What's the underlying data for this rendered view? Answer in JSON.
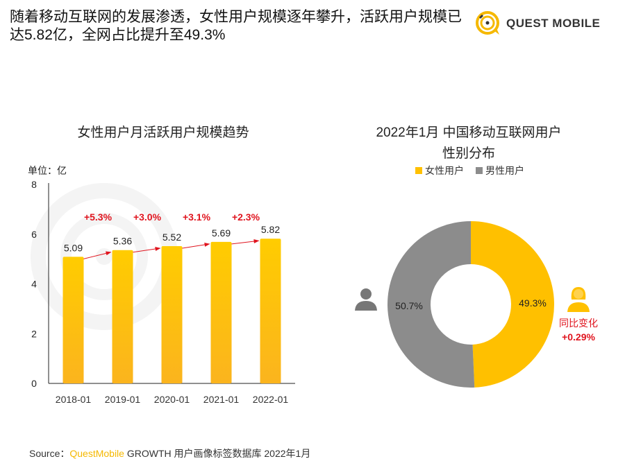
{
  "title": "随着移动互联网的发展渗透，女性用户规模逐年攀升，活跃用户规模已达5.82亿，全网占比提升至49.3%",
  "logo": {
    "text": "QUEST MOBILE"
  },
  "watermark": "QUEST MOBILE",
  "colors": {
    "bar": "#ffc400",
    "male": "#8c8c8c",
    "female": "#ffc000",
    "growth": "#e0141e"
  },
  "chart_data": [
    {
      "type": "bar",
      "title": "女性用户月活跃用户规模趋势",
      "unit_label": "单位：亿",
      "categories": [
        "2018-01",
        "2019-01",
        "2020-01",
        "2021-01",
        "2022-01"
      ],
      "values": [
        5.09,
        5.36,
        5.52,
        5.69,
        5.82
      ],
      "value_labels": [
        "5.09",
        "5.36",
        "5.52",
        "5.69",
        "5.82"
      ],
      "growth_labels": [
        "+5.3%",
        "+3.0%",
        "+3.1%",
        "+2.3%"
      ],
      "yticks": [
        "0",
        "2",
        "4",
        "6",
        "8"
      ],
      "ylim": [
        0,
        8
      ]
    },
    {
      "type": "pie",
      "title_line1": "2022年1月  中国移动互联网用户",
      "title_line2": "性别分布",
      "legend": [
        "女性用户",
        "男性用户"
      ],
      "legend_placement": "top",
      "slices": [
        {
          "name": "女性用户",
          "value": 49.3,
          "label": "49.3%"
        },
        {
          "name": "男性用户",
          "value": 50.7,
          "label": "50.7%"
        }
      ],
      "annotation_label": "同比变化",
      "annotation_value": "+0.29%"
    }
  ],
  "source": {
    "prefix": "Source：",
    "brand": "QuestMobile",
    "rest": " GROWTH 用户画像标签数据库 2022年1月"
  }
}
